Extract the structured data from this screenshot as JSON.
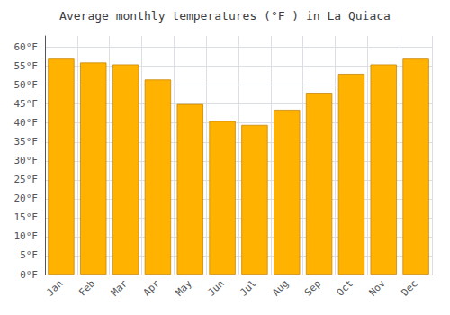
{
  "chart_data": {
    "type": "bar",
    "title": "Average monthly temperatures (°F ) in La Quiaca",
    "categories": [
      "Jan",
      "Feb",
      "Mar",
      "Apr",
      "May",
      "Jun",
      "Jul",
      "Aug",
      "Sep",
      "Oct",
      "Nov",
      "Dec"
    ],
    "values": [
      57.0,
      56.0,
      55.5,
      51.5,
      45.0,
      40.5,
      39.5,
      43.5,
      48.0,
      53.0,
      55.5,
      57.0
    ],
    "color": "#FFB300",
    "ylim": [
      0,
      63
    ],
    "yticks": [
      {
        "value": 0,
        "label": "0°F"
      },
      {
        "value": 5,
        "label": "5°F"
      },
      {
        "value": 10,
        "label": "10°F"
      },
      {
        "value": 15,
        "label": "15°F"
      },
      {
        "value": 20,
        "label": "20°F"
      },
      {
        "value": 25,
        "label": "25°F"
      },
      {
        "value": 30,
        "label": "30°F"
      },
      {
        "value": 35,
        "label": "35°F"
      },
      {
        "value": 40,
        "label": "40°F"
      },
      {
        "value": 45,
        "label": "45°F"
      },
      {
        "value": 50,
        "label": "50°F"
      },
      {
        "value": 55,
        "label": "55°F"
      },
      {
        "value": 60,
        "label": "60°F"
      }
    ],
    "grid": true
  }
}
